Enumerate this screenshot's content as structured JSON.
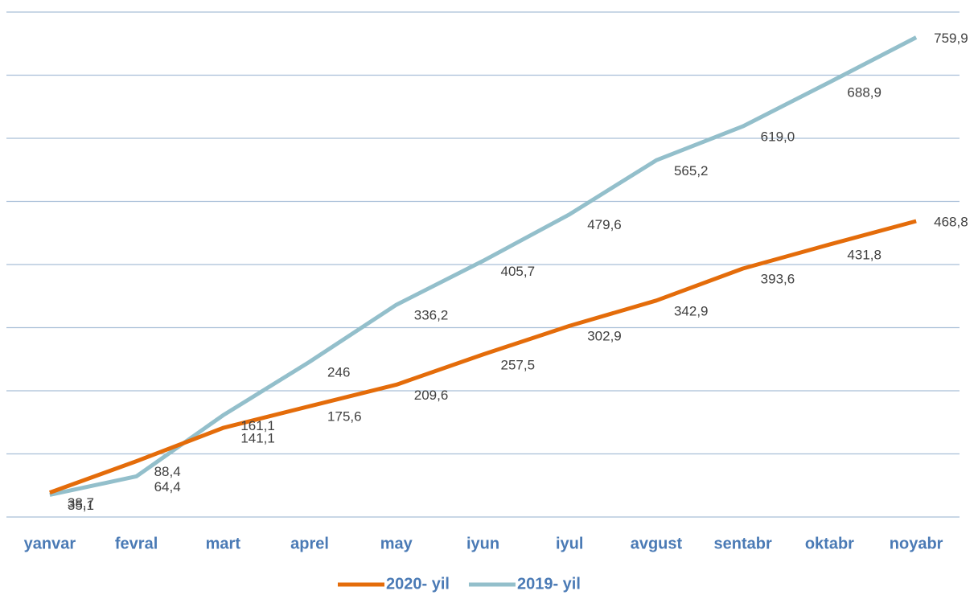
{
  "chart_data": {
    "type": "line",
    "categories": [
      "yanvar",
      "fevral",
      "mart",
      "aprel",
      "may",
      "iyun",
      "iyul",
      "avgust",
      "sentabr",
      "oktabr",
      "noyabr"
    ],
    "series": [
      {
        "name": "2020- yil",
        "color": "#e46c0a",
        "values": [
          38.7,
          88.4,
          141.1,
          175.6,
          209.6,
          257.5,
          302.9,
          342.9,
          393.6,
          431.8,
          468.8
        ],
        "value_labels": [
          "38,7",
          "88,4",
          "141,1",
          "175,6",
          "209,6",
          "257,5",
          "302,9",
          "342,9",
          "393,6",
          "431,8",
          "468,8"
        ]
      },
      {
        "name": "2019- yil",
        "color": "#93bfcb",
        "values": [
          35.1,
          64.4,
          161.1,
          246,
          336.2,
          405.7,
          479.6,
          565.2,
          619.0,
          688.9,
          759.9
        ],
        "value_labels": [
          "35,1",
          "64,4",
          "161,1",
          "246",
          "336,2",
          "405,7",
          "479,6",
          "565,2",
          "619,0",
          "688,9",
          "759,9"
        ]
      }
    ],
    "ylim": [
      0,
      800
    ],
    "yticks": [
      0,
      100,
      200,
      300,
      400,
      500,
      600,
      700,
      800
    ],
    "grid": true,
    "legend": "bottom"
  }
}
